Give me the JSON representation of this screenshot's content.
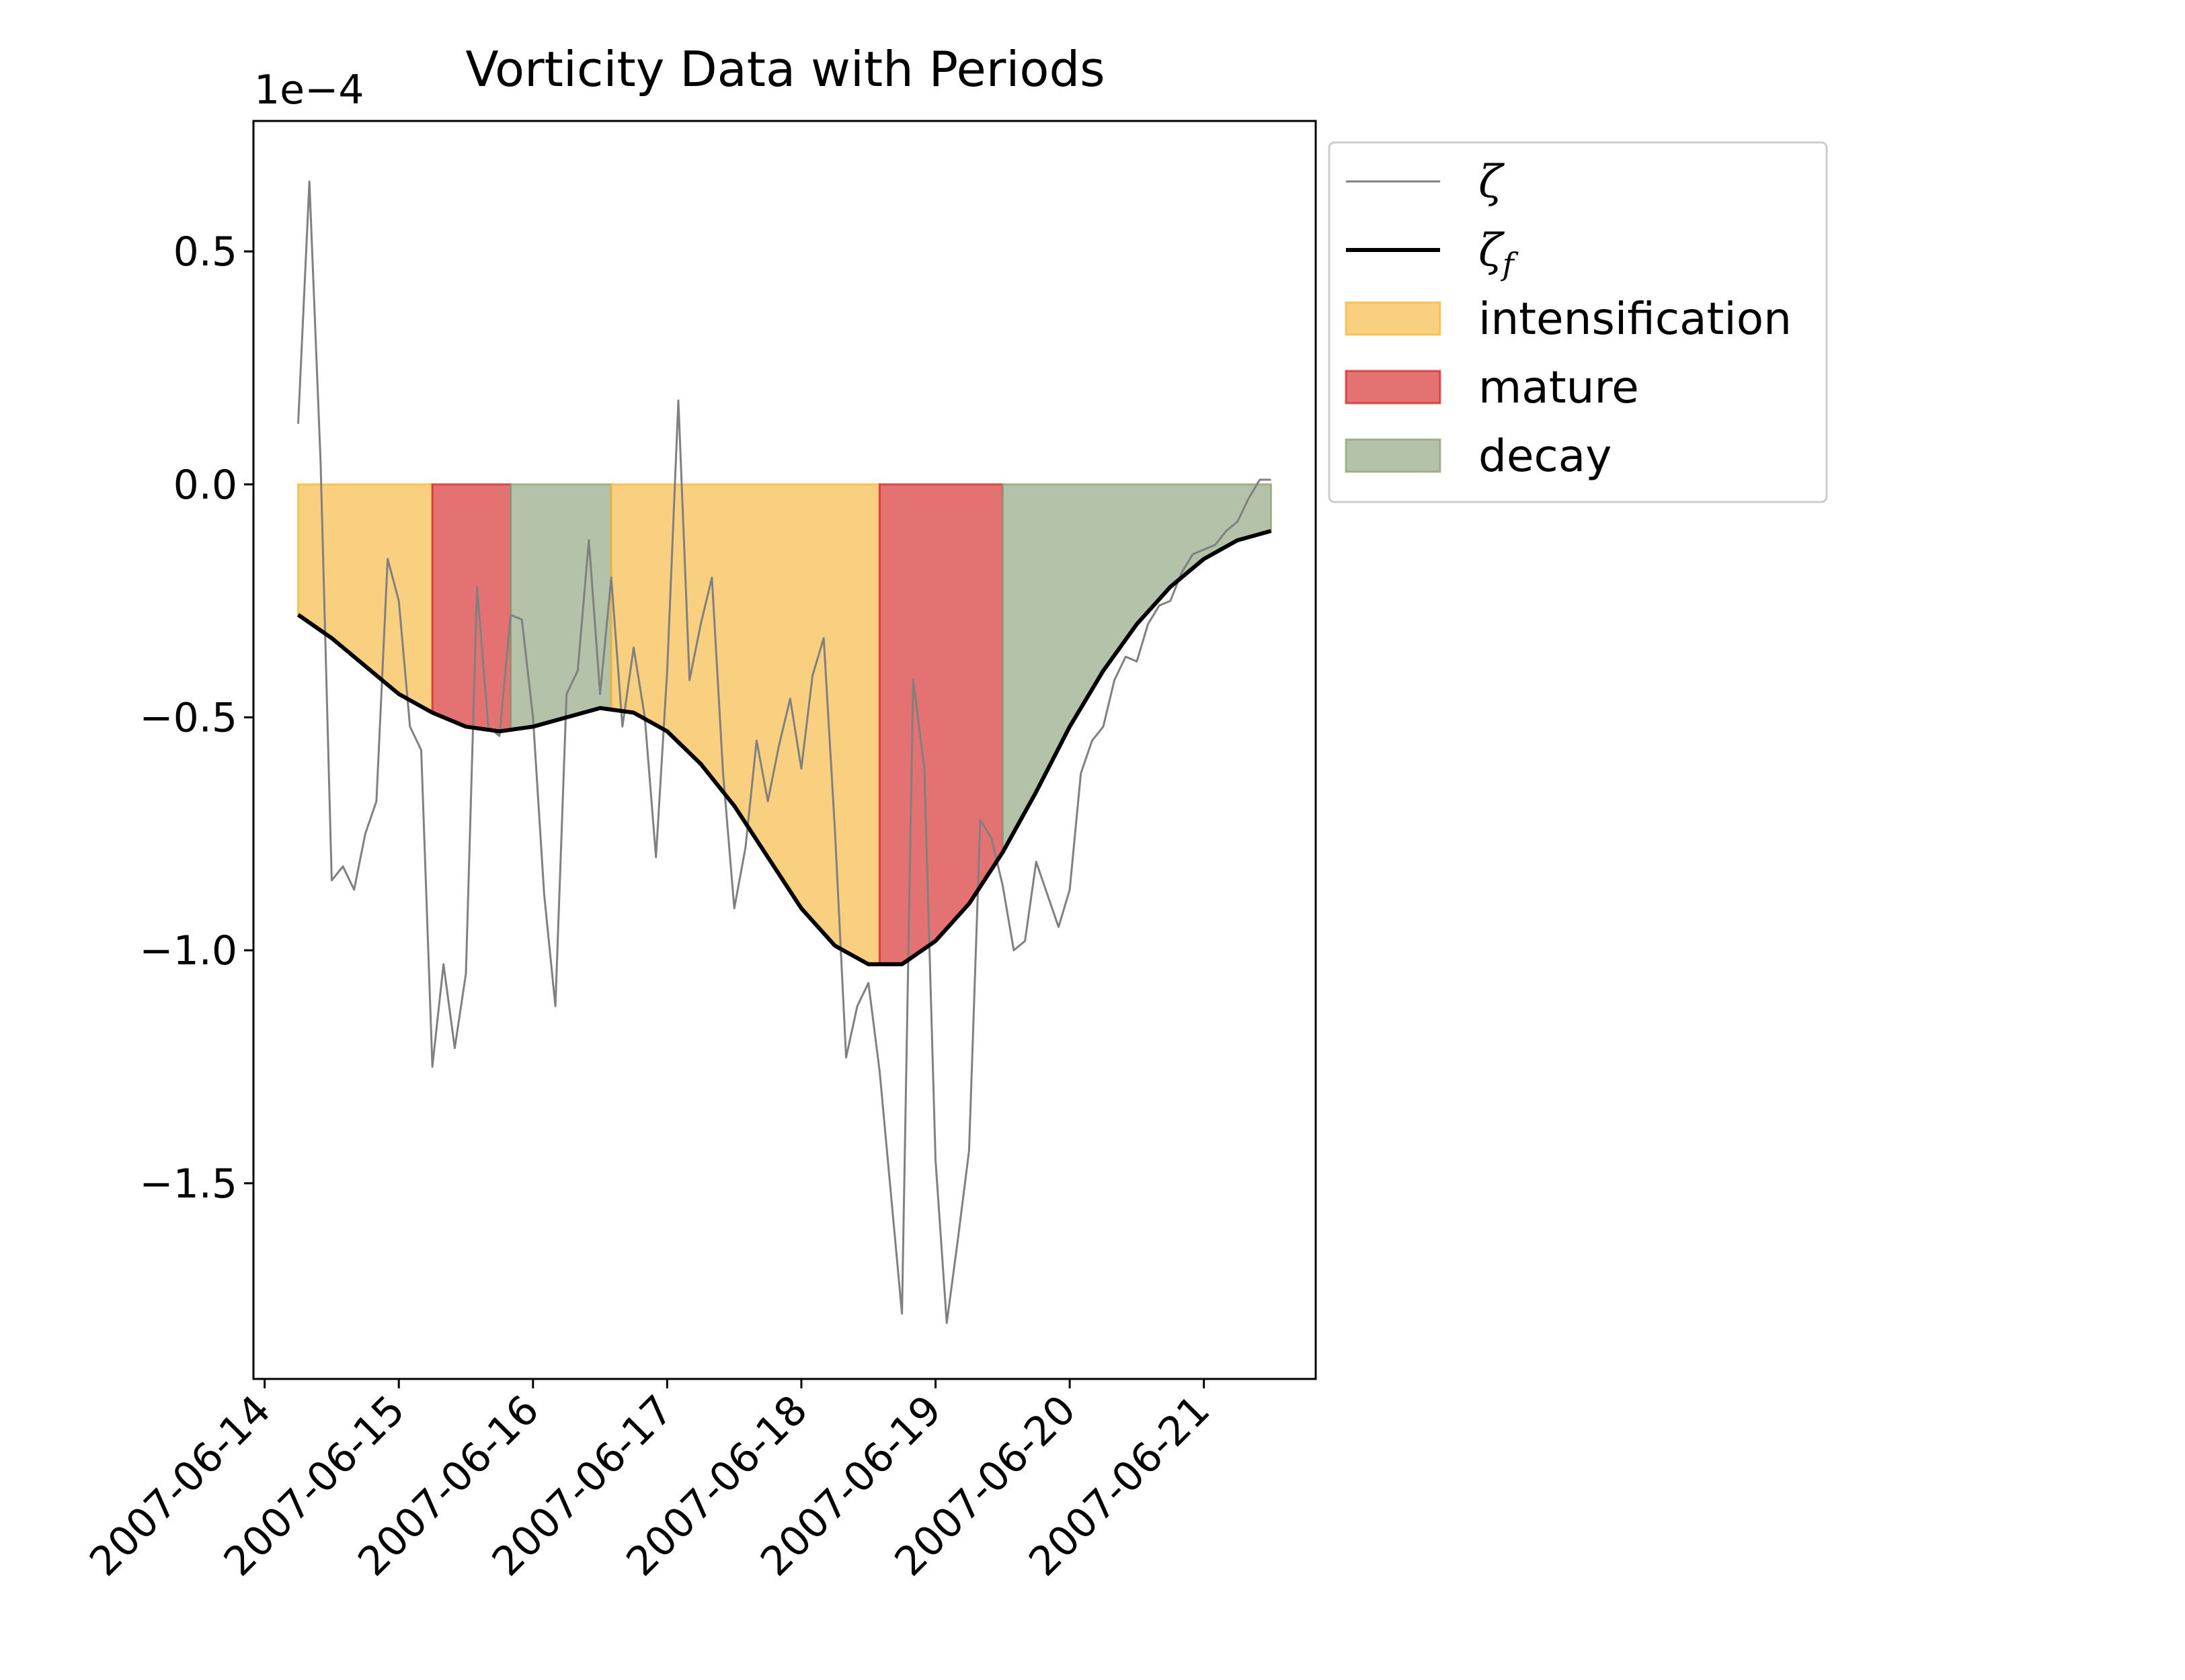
{
  "chart_data": {
    "type": "line",
    "title": "Vorticity Data with Periods",
    "xlabel": "",
    "ylabel": "",
    "y_scale_label": "1e−4",
    "y_scale_factor": 0.0001,
    "x_type": "datetime",
    "xlim": [
      "2007-06-13T22:00",
      "2007-06-21T20:00"
    ],
    "ylim": [
      -1.92,
      0.78
    ],
    "x_ticks": [
      "2007-06-14",
      "2007-06-15",
      "2007-06-16",
      "2007-06-17",
      "2007-06-18",
      "2007-06-19",
      "2007-06-20",
      "2007-06-21"
    ],
    "y_ticks": [
      {
        "value": 0.5,
        "label": "0.5"
      },
      {
        "value": 0.0,
        "label": "0.0"
      },
      {
        "value": -0.5,
        "label": "−0.5"
      },
      {
        "value": -1.0,
        "label": "−1.0"
      },
      {
        "value": -1.5,
        "label": "−1.5"
      }
    ],
    "grid": false,
    "legend_position": "outside-upper-right",
    "series": [
      {
        "name": "ζ",
        "color": "#808080",
        "x": [
          "2007-06-14T06:00",
          "2007-06-14T08:00",
          "2007-06-14T10:00",
          "2007-06-14T12:00",
          "2007-06-14T14:00",
          "2007-06-14T16:00",
          "2007-06-14T18:00",
          "2007-06-14T20:00",
          "2007-06-14T22:00",
          "2007-06-15T00:00",
          "2007-06-15T02:00",
          "2007-06-15T04:00",
          "2007-06-15T06:00",
          "2007-06-15T08:00",
          "2007-06-15T10:00",
          "2007-06-15T12:00",
          "2007-06-15T14:00",
          "2007-06-15T16:00",
          "2007-06-15T18:00",
          "2007-06-15T20:00",
          "2007-06-15T22:00",
          "2007-06-16T00:00",
          "2007-06-16T02:00",
          "2007-06-16T04:00",
          "2007-06-16T06:00",
          "2007-06-16T08:00",
          "2007-06-16T10:00",
          "2007-06-16T12:00",
          "2007-06-16T14:00",
          "2007-06-16T16:00",
          "2007-06-16T18:00",
          "2007-06-16T20:00",
          "2007-06-16T22:00",
          "2007-06-17T00:00",
          "2007-06-17T02:00",
          "2007-06-17T04:00",
          "2007-06-17T06:00",
          "2007-06-17T08:00",
          "2007-06-17T10:00",
          "2007-06-17T12:00",
          "2007-06-17T14:00",
          "2007-06-17T16:00",
          "2007-06-17T18:00",
          "2007-06-17T20:00",
          "2007-06-17T22:00",
          "2007-06-18T00:00",
          "2007-06-18T02:00",
          "2007-06-18T04:00",
          "2007-06-18T06:00",
          "2007-06-18T08:00",
          "2007-06-18T10:00",
          "2007-06-18T12:00",
          "2007-06-18T14:00",
          "2007-06-18T16:00",
          "2007-06-18T18:00",
          "2007-06-18T20:00",
          "2007-06-18T22:00",
          "2007-06-19T00:00",
          "2007-06-19T02:00",
          "2007-06-19T04:00",
          "2007-06-19T06:00",
          "2007-06-19T08:00",
          "2007-06-19T10:00",
          "2007-06-19T12:00",
          "2007-06-19T14:00",
          "2007-06-19T16:00",
          "2007-06-19T18:00",
          "2007-06-19T20:00",
          "2007-06-19T22:00",
          "2007-06-20T00:00",
          "2007-06-20T02:00",
          "2007-06-20T04:00",
          "2007-06-20T06:00",
          "2007-06-20T08:00",
          "2007-06-20T10:00",
          "2007-06-20T12:00",
          "2007-06-20T14:00",
          "2007-06-20T16:00",
          "2007-06-20T18:00",
          "2007-06-20T20:00",
          "2007-06-20T22:00",
          "2007-06-21T00:00",
          "2007-06-21T02:00",
          "2007-06-21T04:00",
          "2007-06-21T06:00",
          "2007-06-21T08:00",
          "2007-06-21T10:00",
          "2007-06-21T12:00"
        ],
        "values": [
          0.13,
          0.65,
          0.05,
          -0.85,
          -0.82,
          -0.87,
          -0.75,
          -0.68,
          -0.16,
          -0.25,
          -0.52,
          -0.57,
          -1.25,
          -1.03,
          -1.21,
          -1.05,
          -0.22,
          -0.52,
          -0.54,
          -0.28,
          -0.29,
          -0.5,
          -0.88,
          -1.12,
          -0.45,
          -0.4,
          -0.12,
          -0.45,
          -0.2,
          -0.52,
          -0.35,
          -0.5,
          -0.8,
          -0.4,
          0.18,
          -0.42,
          -0.3,
          -0.2,
          -0.62,
          -0.91,
          -0.78,
          -0.55,
          -0.68,
          -0.56,
          -0.46,
          -0.61,
          -0.41,
          -0.33,
          -0.74,
          -1.23,
          -1.12,
          -1.07,
          -1.26,
          -1.52,
          -1.78,
          -0.42,
          -0.61,
          -1.45,
          -1.8,
          -1.62,
          -1.43,
          -0.72,
          -0.76,
          -0.86,
          -1.0,
          -0.98,
          -0.81,
          -0.88,
          -0.95,
          -0.87,
          -0.62,
          -0.55,
          -0.52,
          -0.42,
          -0.37,
          -0.38,
          -0.3,
          -0.26,
          -0.25,
          -0.19,
          -0.15,
          -0.14,
          -0.13,
          -0.1,
          -0.08,
          -0.03,
          0.01,
          0.01
        ]
      },
      {
        "name": "ζf",
        "color": "#000000",
        "x": [
          "2007-06-14T06:00",
          "2007-06-14T12:00",
          "2007-06-14T18:00",
          "2007-06-15T00:00",
          "2007-06-15T06:00",
          "2007-06-15T12:00",
          "2007-06-15T18:00",
          "2007-06-16T00:00",
          "2007-06-16T06:00",
          "2007-06-16T12:00",
          "2007-06-16T18:00",
          "2007-06-17T00:00",
          "2007-06-17T06:00",
          "2007-06-17T12:00",
          "2007-06-17T18:00",
          "2007-06-18T00:00",
          "2007-06-18T06:00",
          "2007-06-18T12:00",
          "2007-06-18T18:00",
          "2007-06-19T00:00",
          "2007-06-19T06:00",
          "2007-06-19T12:00",
          "2007-06-19T18:00",
          "2007-06-20T00:00",
          "2007-06-20T06:00",
          "2007-06-20T12:00",
          "2007-06-20T18:00",
          "2007-06-21T00:00",
          "2007-06-21T06:00",
          "2007-06-21T12:00"
        ],
        "values": [
          -0.28,
          -0.33,
          -0.39,
          -0.45,
          -0.49,
          -0.52,
          -0.53,
          -0.52,
          -0.5,
          -0.48,
          -0.49,
          -0.53,
          -0.6,
          -0.69,
          -0.8,
          -0.91,
          -0.99,
          -1.03,
          -1.03,
          -0.98,
          -0.9,
          -0.79,
          -0.66,
          -0.52,
          -0.4,
          -0.3,
          -0.22,
          -0.16,
          -0.12,
          -0.1
        ]
      }
    ],
    "periods": [
      {
        "name": "intensification",
        "color": "#f6b73c",
        "start": "2007-06-14T06:00",
        "end": "2007-06-15T06:00"
      },
      {
        "name": "mature",
        "color": "#d62728",
        "start": "2007-06-15T06:00",
        "end": "2007-06-15T20:00"
      },
      {
        "name": "decay",
        "color": "#8ba27a",
        "start": "2007-06-15T20:00",
        "end": "2007-06-16T14:00"
      },
      {
        "name": "intensification",
        "color": "#f6b73c",
        "start": "2007-06-16T14:00",
        "end": "2007-06-18T14:00"
      },
      {
        "name": "mature",
        "color": "#d62728",
        "start": "2007-06-18T14:00",
        "end": "2007-06-19T12:00"
      },
      {
        "name": "decay",
        "color": "#8ba27a",
        "start": "2007-06-19T12:00",
        "end": "2007-06-21T12:00"
      }
    ],
    "legend": [
      {
        "label": "ζ",
        "kind": "line",
        "color": "#808080"
      },
      {
        "label": "ζ",
        "subscript": "f",
        "kind": "line",
        "color": "#000000"
      },
      {
        "label": "intensification",
        "kind": "patch",
        "color": "#f6b73c"
      },
      {
        "label": "mature",
        "kind": "patch",
        "color": "#d62728"
      },
      {
        "label": "decay",
        "kind": "patch",
        "color": "#8ba27a"
      }
    ]
  }
}
